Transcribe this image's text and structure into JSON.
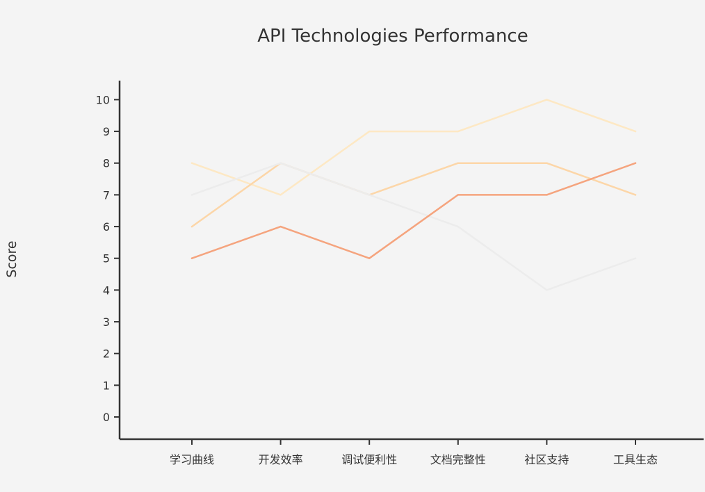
{
  "chart_data": {
    "type": "line",
    "title": "API Technologies Performance",
    "xlabel": "",
    "ylabel": "Score",
    "categories": [
      "学习曲线",
      "开发效率",
      "调试便利性",
      "文档完整性",
      "社区支持",
      "工具生态"
    ],
    "y_ticks": [
      0,
      1,
      2,
      3,
      4,
      5,
      6,
      7,
      8,
      9,
      10
    ],
    "ylim": [
      -0.7,
      10.6
    ],
    "grid": false,
    "legend": "none",
    "series": [
      {
        "values": [
          8,
          7,
          9,
          9,
          10,
          9
        ],
        "color": "#fde8c4"
      },
      {
        "values": [
          6,
          8,
          7,
          8,
          8,
          7
        ],
        "color": "#fcd6a8"
      },
      {
        "values": [
          7,
          8,
          7,
          6,
          4,
          5
        ],
        "color": "#ececec"
      },
      {
        "values": [
          5,
          6,
          5,
          7,
          7,
          8
        ],
        "color": "#f5a47e"
      }
    ]
  }
}
